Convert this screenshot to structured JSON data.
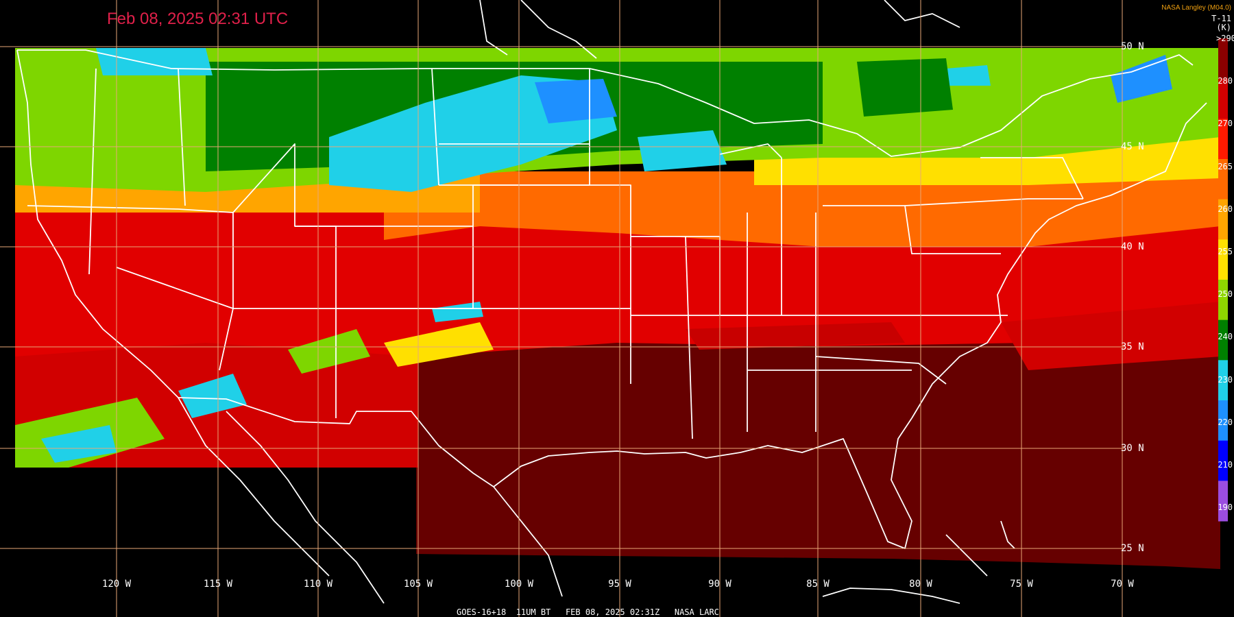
{
  "header": {
    "timestamp": "Feb 08, 2025 02:31 UTC",
    "credit": "NASA Langley (M04.0)",
    "product": "T-11",
    "units": "(K)"
  },
  "footer": {
    "text": "GOES-16+18  11UM BT   FEB 08, 2025 02:31Z   NASA LARC"
  },
  "colorbar": {
    "labels": [
      ">290",
      "280",
      "270",
      "265",
      "260",
      "255",
      "250",
      "240",
      "230",
      "220",
      "210",
      "190"
    ],
    "colors": [
      "#8b0000",
      "#d10000",
      "#ff1a00",
      "#ff6a00",
      "#ffa500",
      "#ffe000",
      "#8ed600",
      "#008000",
      "#20d0e8",
      "#1e90ff",
      "#0000ff",
      "#9b4de0"
    ]
  },
  "grid": {
    "longitudes": [
      "120 W",
      "115 W",
      "110 W",
      "105 W",
      "100 W",
      "95 W",
      "90 W",
      "85 W",
      "80 W",
      "75 W",
      "70 W"
    ],
    "latitudes": [
      "50 N",
      "45 N",
      "40 N",
      "35 N",
      "30 N",
      "25 N"
    ],
    "color": "#e8a878"
  },
  "legend_colors": {
    "background": "#000000",
    "title": "#e0204a",
    "credit": "#f0a010",
    "borders": "#ffffff"
  }
}
